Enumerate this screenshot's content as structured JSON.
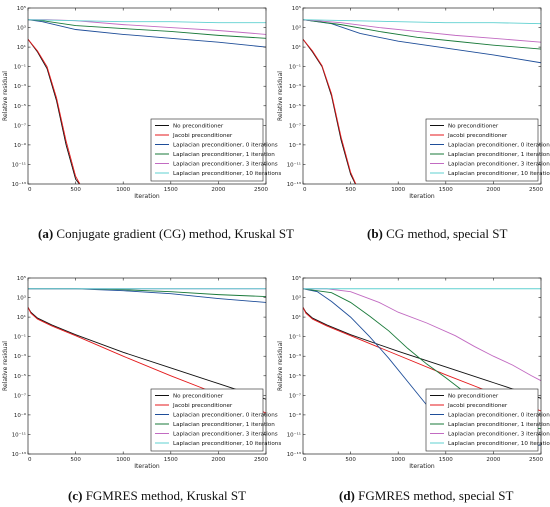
{
  "chart_data": [
    {
      "id": "a",
      "type": "line",
      "caption_tag": "(a)",
      "caption_text": "Conjugate gradient (CG) method, Kruskal ST",
      "xlabel": "Iteration",
      "ylabel": "Relative residual",
      "xlim": [
        0,
        2500
      ],
      "xticks": [
        0,
        500,
        1000,
        1500,
        2000,
        2500
      ],
      "ylog": true,
      "ylim_exp": [
        -13,
        5
      ],
      "ytick_exps": [
        -13,
        -11,
        -9,
        -7,
        -5,
        -3,
        -1,
        1,
        3,
        5
      ],
      "grid": false,
      "legend_position": "lower-right",
      "series": [
        {
          "name": "No preconditioner",
          "color": "#111111",
          "points": [
            [
              0,
              1.8
            ],
            [
              100,
              0.5
            ],
            [
              200,
              -1.2
            ],
            [
              300,
              -4.5
            ],
            [
              400,
              -9
            ],
            [
              500,
              -12.5
            ],
            [
              540,
              -13
            ]
          ]
        },
        {
          "name": "Jacobi preconditioner",
          "color": "#e41a1c",
          "points": [
            [
              0,
              1.8
            ],
            [
              100,
              0.6
            ],
            [
              200,
              -1.0
            ],
            [
              300,
              -4.2
            ],
            [
              400,
              -8.6
            ],
            [
              500,
              -12.2
            ],
            [
              545,
              -13
            ]
          ]
        },
        {
          "name": "Laplacian preconditioner, 0 iterations",
          "color": "#1f4e99",
          "points": [
            [
              0,
              3.8
            ],
            [
              150,
              3.6
            ],
            [
              500,
              2.8
            ],
            [
              1000,
              2.3
            ],
            [
              1500,
              1.9
            ],
            [
              2000,
              1.5
            ],
            [
              2500,
              1.0
            ]
          ]
        },
        {
          "name": "Laplacian preconditioner, 1 iteration",
          "color": "#1a7a3a",
          "points": [
            [
              0,
              3.8
            ],
            [
              150,
              3.7
            ],
            [
              500,
              3.2
            ],
            [
              1000,
              2.9
            ],
            [
              1500,
              2.6
            ],
            [
              2000,
              2.2
            ],
            [
              2500,
              1.9
            ]
          ]
        },
        {
          "name": "Laplacian preconditioner, 3 iterations",
          "color": "#c26bc2",
          "points": [
            [
              0,
              3.8
            ],
            [
              200,
              3.8
            ],
            [
              500,
              3.7
            ],
            [
              1000,
              3.3
            ],
            [
              1500,
              3.0
            ],
            [
              2000,
              2.7
            ],
            [
              2500,
              2.3
            ]
          ]
        },
        {
          "name": "Laplacian preconditioner, 10 iterations",
          "color": "#5fd0d0",
          "points": [
            [
              0,
              3.8
            ],
            [
              500,
              3.7
            ],
            [
              1000,
              3.6
            ],
            [
              1500,
              3.6
            ],
            [
              2000,
              3.5
            ],
            [
              2500,
              3.5
            ]
          ]
        }
      ]
    },
    {
      "id": "b",
      "type": "line",
      "caption_tag": "(b)",
      "caption_text": "CG method, special ST",
      "xlabel": "Iteration",
      "ylabel": "Relative residual",
      "xlim": [
        0,
        2500
      ],
      "xticks": [
        0,
        500,
        1000,
        1500,
        2000,
        2500
      ],
      "ylog": true,
      "ylim_exp": [
        -13,
        5
      ],
      "ytick_exps": [
        -13,
        -11,
        -9,
        -7,
        -5,
        -3,
        -1,
        1,
        3,
        5
      ],
      "grid": false,
      "legend_position": "lower-right",
      "series": [
        {
          "name": "No preconditioner",
          "color": "#111111",
          "points": [
            [
              0,
              1.8
            ],
            [
              100,
              0.5
            ],
            [
              200,
              -1.0
            ],
            [
              300,
              -4.0
            ],
            [
              400,
              -8.5
            ],
            [
              500,
              -12.0
            ],
            [
              550,
              -13
            ]
          ]
        },
        {
          "name": "Jacobi preconditioner",
          "color": "#e41a1c",
          "points": [
            [
              0,
              1.8
            ],
            [
              100,
              0.6
            ],
            [
              200,
              -0.9
            ],
            [
              300,
              -3.8
            ],
            [
              400,
              -8.2
            ],
            [
              500,
              -11.8
            ],
            [
              555,
              -13
            ]
          ]
        },
        {
          "name": "Laplacian preconditioner, 0 iterations",
          "color": "#1f4e99",
          "points": [
            [
              0,
              3.8
            ],
            [
              300,
              3.4
            ],
            [
              600,
              2.4
            ],
            [
              1000,
              1.6
            ],
            [
              1500,
              0.9
            ],
            [
              2000,
              0.2
            ],
            [
              2500,
              -0.6
            ]
          ]
        },
        {
          "name": "Laplacian preconditioner, 1 iteration",
          "color": "#1a7a3a",
          "points": [
            [
              0,
              3.8
            ],
            [
              400,
              3.3
            ],
            [
              800,
              2.6
            ],
            [
              1200,
              2.0
            ],
            [
              1600,
              1.6
            ],
            [
              2000,
              1.2
            ],
            [
              2500,
              0.8
            ]
          ]
        },
        {
          "name": "Laplacian preconditioner, 3 iterations",
          "color": "#c26bc2",
          "points": [
            [
              0,
              3.8
            ],
            [
              400,
              3.5
            ],
            [
              800,
              3.0
            ],
            [
              1200,
              2.6
            ],
            [
              1600,
              2.2
            ],
            [
              2000,
              1.9
            ],
            [
              2500,
              1.5
            ]
          ]
        },
        {
          "name": "Laplacian preconditioner, 10 iterations",
          "color": "#5fd0d0",
          "points": [
            [
              0,
              3.8
            ],
            [
              500,
              3.7
            ],
            [
              1000,
              3.6
            ],
            [
              1500,
              3.5
            ],
            [
              2000,
              3.5
            ],
            [
              2500,
              3.4
            ]
          ]
        }
      ]
    },
    {
      "id": "c",
      "type": "line",
      "caption_tag": "(c)",
      "caption_text": "FGMRES method, Kruskal ST",
      "xlabel": "Iteration",
      "ylabel": "Relative residual",
      "xlim": [
        0,
        2500
      ],
      "xticks": [
        0,
        500,
        1000,
        1500,
        2000,
        2500
      ],
      "ylog": true,
      "ylim_exp": [
        -13,
        5
      ],
      "ytick_exps": [
        -13,
        -11,
        -9,
        -7,
        -5,
        -3,
        -1,
        1,
        3,
        5
      ],
      "grid": false,
      "legend_position": "lower-right",
      "series": [
        {
          "name": "No preconditioner",
          "color": "#111111",
          "points": [
            [
              0,
              2.0
            ],
            [
              30,
              1.5
            ],
            [
              100,
              0.9
            ],
            [
              250,
              0.2
            ],
            [
              500,
              -0.8
            ],
            [
              1000,
              -2.6
            ],
            [
              1500,
              -4.2
            ],
            [
              2000,
              -5.8
            ],
            [
              2500,
              -7.4
            ]
          ]
        },
        {
          "name": "Jacobi preconditioner",
          "color": "#e41a1c",
          "points": [
            [
              0,
              2.0
            ],
            [
              30,
              1.4
            ],
            [
              100,
              0.8
            ],
            [
              250,
              0.1
            ],
            [
              500,
              -0.9
            ],
            [
              1000,
              -3.0
            ],
            [
              1500,
              -5.0
            ],
            [
              2000,
              -6.9
            ],
            [
              2500,
              -8.8
            ]
          ]
        },
        {
          "name": "Laplacian preconditioner, 0 iterations",
          "color": "#1f4e99",
          "points": [
            [
              0,
              3.9
            ],
            [
              500,
              3.9
            ],
            [
              1000,
              3.7
            ],
            [
              1500,
              3.4
            ],
            [
              2000,
              2.9
            ],
            [
              2500,
              2.5
            ]
          ]
        },
        {
          "name": "Laplacian preconditioner, 1 iteration",
          "color": "#1a7a3a",
          "points": [
            [
              0,
              3.9
            ],
            [
              500,
              3.9
            ],
            [
              1000,
              3.8
            ],
            [
              1500,
              3.6
            ],
            [
              2000,
              3.3
            ],
            [
              2500,
              3.1
            ]
          ]
        },
        {
          "name": "Laplacian preconditioner, 3 iterations",
          "color": "#c26bc2",
          "points": [
            [
              0,
              3.9
            ],
            [
              500,
              3.9
            ],
            [
              1000,
              3.9
            ],
            [
              1500,
              3.9
            ],
            [
              2000,
              3.9
            ],
            [
              2500,
              3.9
            ]
          ]
        },
        {
          "name": "Laplacian preconditioner, 10 iterations",
          "color": "#5fd0d0",
          "points": [
            [
              0,
              3.9
            ],
            [
              500,
              3.9
            ],
            [
              1000,
              3.9
            ],
            [
              1500,
              3.9
            ],
            [
              2000,
              3.9
            ],
            [
              2500,
              3.9
            ]
          ]
        }
      ]
    },
    {
      "id": "d",
      "type": "line",
      "caption_tag": "(d)",
      "caption_text": "FGMRES method, special ST",
      "xlabel": "Iteration",
      "ylabel": "Relative residual",
      "xlim": [
        0,
        2500
      ],
      "xticks": [
        0,
        500,
        1000,
        1500,
        2000,
        2500
      ],
      "ylog": true,
      "ylim_exp": [
        -13,
        5
      ],
      "ytick_exps": [
        -13,
        -11,
        -9,
        -7,
        -5,
        -3,
        -1,
        1,
        3,
        5
      ],
      "grid": false,
      "legend_position": "lower-right",
      "series": [
        {
          "name": "No preconditioner",
          "color": "#111111",
          "points": [
            [
              0,
              2.0
            ],
            [
              30,
              1.5
            ],
            [
              100,
              0.9
            ],
            [
              250,
              0.2
            ],
            [
              500,
              -0.8
            ],
            [
              1000,
              -2.5
            ],
            [
              1500,
              -4.1
            ],
            [
              2000,
              -5.7
            ],
            [
              2500,
              -7.3
            ]
          ]
        },
        {
          "name": "Jacobi preconditioner",
          "color": "#e41a1c",
          "points": [
            [
              0,
              2.0
            ],
            [
              30,
              1.4
            ],
            [
              100,
              0.8
            ],
            [
              250,
              0.1
            ],
            [
              500,
              -0.9
            ],
            [
              1000,
              -2.9
            ],
            [
              1500,
              -4.9
            ],
            [
              2000,
              -6.8
            ],
            [
              2500,
              -8.6
            ]
          ]
        },
        {
          "name": "Laplacian preconditioner, 0 iterations",
          "color": "#1f4e99",
          "points": [
            [
              0,
              3.9
            ],
            [
              150,
              3.6
            ],
            [
              300,
              2.6
            ],
            [
              500,
              1.0
            ],
            [
              700,
              -1.0
            ],
            [
              900,
              -3.2
            ],
            [
              1100,
              -5.6
            ],
            [
              1300,
              -8.0
            ],
            [
              1500,
              -10.1
            ],
            [
              1700,
              -11.8
            ],
            [
              2000,
              -12.0
            ],
            [
              2500,
              -12.1
            ]
          ]
        },
        {
          "name": "Laplacian preconditioner, 1 iteration",
          "color": "#1a7a3a",
          "points": [
            [
              0,
              3.9
            ],
            [
              300,
              3.5
            ],
            [
              500,
              2.5
            ],
            [
              700,
              1.1
            ],
            [
              900,
              -0.4
            ],
            [
              1100,
              -2.2
            ],
            [
              1300,
              -3.8
            ],
            [
              1500,
              -5.2
            ],
            [
              1700,
              -6.7
            ],
            [
              1900,
              -8.6
            ],
            [
              2100,
              -10.2
            ],
            [
              2300,
              -10.4
            ],
            [
              2500,
              -10.4
            ]
          ]
        },
        {
          "name": "Laplacian preconditioner, 3 iterations",
          "color": "#c26bc2",
          "points": [
            [
              0,
              3.9
            ],
            [
              250,
              3.9
            ],
            [
              500,
              3.6
            ],
            [
              800,
              2.5
            ],
            [
              1000,
              1.5
            ],
            [
              1300,
              0.4
            ],
            [
              1600,
              -0.9
            ],
            [
              1800,
              -2.0
            ],
            [
              2000,
              -3.0
            ],
            [
              2200,
              -3.9
            ],
            [
              2400,
              -5.0
            ],
            [
              2500,
              -5.5
            ]
          ]
        },
        {
          "name": "Laplacian preconditioner, 10 iterations",
          "color": "#5fd0d0",
          "points": [
            [
              0,
              3.9
            ],
            [
              500,
              3.9
            ],
            [
              1000,
              3.9
            ],
            [
              1500,
              3.9
            ],
            [
              2000,
              3.9
            ],
            [
              2500,
              3.9
            ]
          ]
        }
      ]
    }
  ]
}
